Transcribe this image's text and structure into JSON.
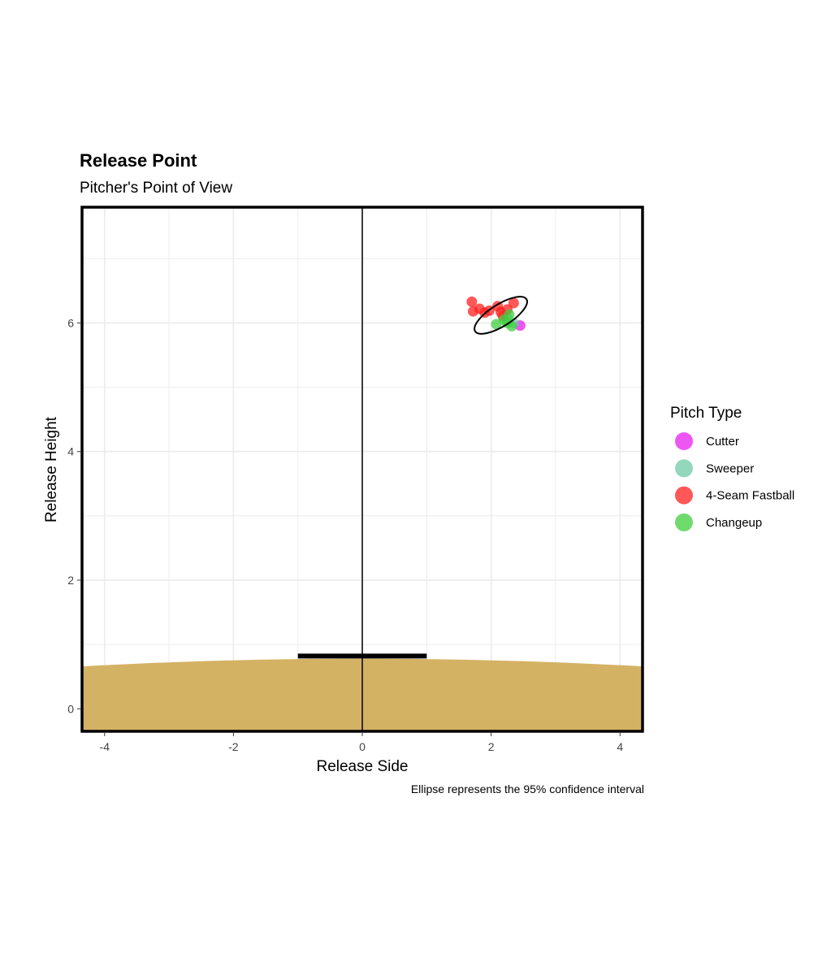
{
  "chart_data": {
    "type": "scatter",
    "title": "Release Point",
    "subtitle": "Pitcher's Point of View",
    "xlabel": "Release Side",
    "ylabel": "Release Height",
    "caption": "Ellipse represents the 95% confidence interval",
    "xlim": [
      -4.35,
      4.35
    ],
    "ylim": [
      -0.35,
      7.8
    ],
    "x_ticks": [
      -4,
      -2,
      0,
      2,
      4
    ],
    "y_ticks": [
      0,
      2,
      4,
      6
    ],
    "grid": true,
    "legend": {
      "title": "Pitch Type",
      "placement": "right"
    },
    "series": [
      {
        "name": "Cutter",
        "color": "#e81ef0",
        "points": [
          [
            2.45,
            5.96
          ]
        ]
      },
      {
        "name": "Sweeper",
        "color": "#6fcaa7",
        "points": [
          [
            2.25,
            6.08
          ],
          [
            2.35,
            6.0
          ]
        ]
      },
      {
        "name": "4-Seam Fastball",
        "color": "#ff2020",
        "points": [
          [
            1.7,
            6.33
          ],
          [
            1.72,
            6.18
          ],
          [
            1.82,
            6.22
          ],
          [
            1.9,
            6.16
          ],
          [
            1.97,
            6.19
          ],
          [
            2.1,
            6.26
          ],
          [
            2.15,
            6.17
          ],
          [
            2.25,
            6.21
          ],
          [
            2.35,
            6.31
          ],
          [
            2.18,
            6.11
          ]
        ]
      },
      {
        "name": "Changeup",
        "color": "#3fcf3f",
        "points": [
          [
            2.08,
            5.98
          ],
          [
            2.2,
            6.05
          ],
          [
            2.28,
            6.13
          ],
          [
            2.32,
            5.95
          ],
          [
            2.25,
            6.0
          ]
        ]
      }
    ],
    "ellipse": {
      "center": [
        2.15,
        6.12
      ],
      "semi_axis_major": 0.47,
      "semi_axis_minor": 0.17,
      "angle_deg": -32
    },
    "mound": {
      "color": "#d4b264",
      "center_height": 0.78,
      "edge_height": 0.66
    },
    "rubber": {
      "x_range": [
        -1,
        1
      ],
      "y": 0.82
    }
  }
}
